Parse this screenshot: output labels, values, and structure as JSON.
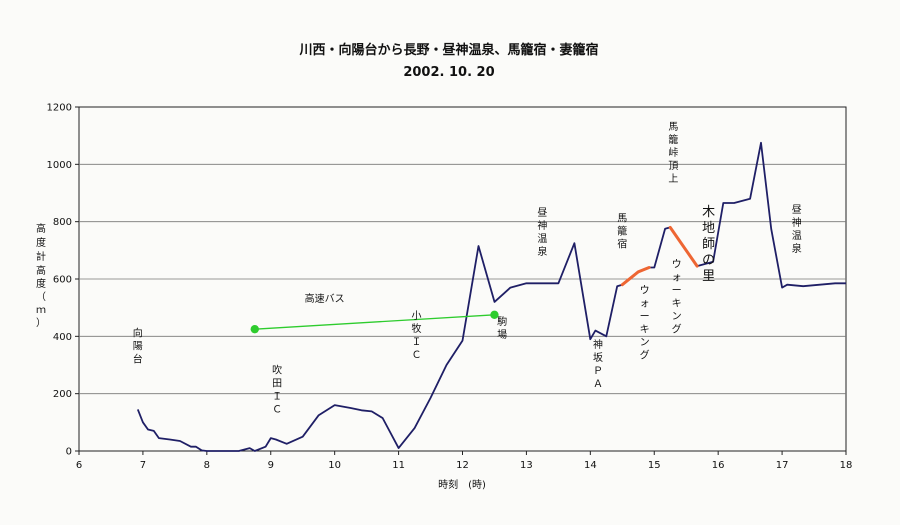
{
  "chart_data": {
    "type": "line",
    "title": "川西・向陽台から長野・昼神温泉、馬籠宿・妻籠宿",
    "subtitle": "2002. 10. 20",
    "xlabel": "時刻　(時)",
    "ylabel": "高度計高度（ｍ）",
    "xlim": [
      6,
      18
    ],
    "ylim": [
      0,
      1200
    ],
    "x_ticks": [
      "6",
      "7",
      "8",
      "9",
      "10",
      "11",
      "12",
      "13",
      "14",
      "15",
      "16",
      "17",
      "18"
    ],
    "y_ticks": [
      "0",
      "200",
      "400",
      "600",
      "800",
      "1000",
      "1200"
    ],
    "grid": "horizontal",
    "colors": {
      "altitude": "#1f1f66",
      "bus": "#2ecc2e",
      "walking": "#ee6633"
    },
    "series": [
      {
        "key": "altitude",
        "points": [
          [
            6.92,
            145
          ],
          [
            7.0,
            100
          ],
          [
            7.08,
            75
          ],
          [
            7.17,
            70
          ],
          [
            7.25,
            45
          ],
          [
            7.42,
            40
          ],
          [
            7.58,
            35
          ],
          [
            7.75,
            15
          ],
          [
            7.83,
            15
          ],
          [
            7.92,
            2
          ],
          [
            8.0,
            0
          ],
          [
            8.5,
            0
          ],
          [
            8.67,
            10
          ],
          [
            8.75,
            0
          ],
          [
            8.92,
            15
          ],
          [
            9.0,
            45
          ],
          [
            9.08,
            40
          ],
          [
            9.25,
            25
          ],
          [
            9.5,
            50
          ],
          [
            9.75,
            125
          ],
          [
            10.0,
            160
          ],
          [
            10.25,
            150
          ],
          [
            10.42,
            142
          ],
          [
            10.58,
            138
          ],
          [
            10.75,
            115
          ],
          [
            11.0,
            10
          ],
          [
            11.25,
            80
          ],
          [
            11.5,
            185
          ],
          [
            11.75,
            300
          ],
          [
            12.0,
            385
          ],
          [
            12.25,
            715
          ],
          [
            12.5,
            520
          ],
          [
            12.75,
            570
          ],
          [
            13.0,
            585
          ],
          [
            13.5,
            585
          ],
          [
            13.75,
            725
          ],
          [
            14.0,
            390
          ],
          [
            14.08,
            420
          ],
          [
            14.25,
            400
          ],
          [
            14.42,
            575
          ],
          [
            14.5,
            580
          ],
          [
            14.75,
            625
          ],
          [
            14.92,
            640
          ],
          [
            15.0,
            640
          ],
          [
            15.17,
            775
          ],
          [
            15.25,
            780
          ],
          [
            15.67,
            645
          ],
          [
            15.92,
            660
          ],
          [
            16.08,
            865
          ],
          [
            16.25,
            865
          ],
          [
            16.5,
            880
          ],
          [
            16.67,
            1075
          ],
          [
            16.83,
            775
          ],
          [
            17.0,
            570
          ],
          [
            17.08,
            580
          ],
          [
            17.33,
            575
          ],
          [
            17.83,
            585
          ],
          [
            18.0,
            585
          ]
        ]
      },
      {
        "key": "walking",
        "segments": [
          [
            [
              14.5,
              580
            ],
            [
              14.75,
              625
            ],
            [
              14.92,
              640
            ]
          ],
          [
            [
              15.25,
              780
            ],
            [
              15.67,
              645
            ]
          ]
        ]
      },
      {
        "key": "bus",
        "points": [
          [
            8.75,
            425
          ],
          [
            12.5,
            475
          ]
        ],
        "label": "高速バス"
      }
    ],
    "annotations": [
      {
        "text": "向陽台",
        "x": 6.92,
        "y": 400,
        "vertical": true,
        "size": "small"
      },
      {
        "text": "吹田ＩＣ",
        "x": 9.1,
        "y": 270,
        "vertical": true,
        "size": "small"
      },
      {
        "text": "小牧ＩＣ",
        "x": 11.28,
        "y": 460,
        "vertical": true,
        "size": "small"
      },
      {
        "text": "駒場",
        "x": 12.62,
        "y": 440,
        "vertical": true,
        "size": "small"
      },
      {
        "text": "昼神温泉",
        "x": 13.25,
        "y": 820,
        "vertical": true,
        "size": "small"
      },
      {
        "text": "神坂ＰＡ",
        "x": 14.12,
        "y": 360,
        "vertical": true,
        "size": "small"
      },
      {
        "text": "馬籠宿",
        "x": 14.5,
        "y": 800,
        "vertical": true,
        "size": "small"
      },
      {
        "text": "ウォーキング",
        "x": 14.85,
        "y": 550,
        "vertical": true,
        "size": "small"
      },
      {
        "text": "馬籠峠頂上",
        "x": 15.3,
        "y": 1120,
        "vertical": true,
        "size": "small"
      },
      {
        "text": "ウォーキング",
        "x": 15.35,
        "y": 640,
        "vertical": true,
        "size": "small"
      },
      {
        "text": "木地師の里",
        "x": 15.85,
        "y": 820,
        "vertical": true,
        "size": "big"
      },
      {
        "text": "昼神温泉",
        "x": 17.23,
        "y": 830,
        "vertical": true,
        "size": "small"
      }
    ]
  }
}
